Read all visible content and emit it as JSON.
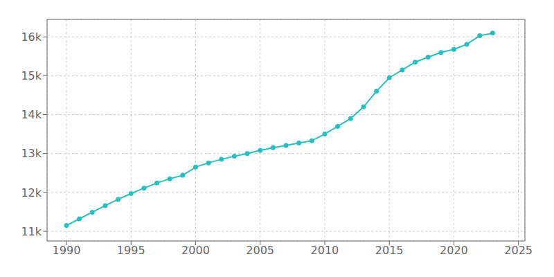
{
  "chart_data": {
    "type": "line",
    "x": [
      1990,
      1991,
      1992,
      1993,
      1994,
      1995,
      1996,
      1997,
      1998,
      1999,
      2000,
      2001,
      2002,
      2003,
      2004,
      2005,
      2006,
      2007,
      2008,
      2009,
      2010,
      2011,
      2012,
      2013,
      2014,
      2015,
      2016,
      2017,
      2018,
      2019,
      2020,
      2021,
      2022,
      2023
    ],
    "values": [
      11150,
      11320,
      11490,
      11660,
      11820,
      11970,
      12110,
      12240,
      12350,
      12440,
      12650,
      12760,
      12850,
      12930,
      13000,
      13080,
      13150,
      13210,
      13270,
      13330,
      13500,
      13700,
      13900,
      14200,
      14600,
      14950,
      15150,
      15350,
      15480,
      15600,
      15680,
      15810,
      16030,
      16100
    ],
    "color": "#29bfc0",
    "marker": "circle",
    "xlim": [
      1988.5,
      2025.5
    ],
    "ylim": [
      10750,
      16450
    ],
    "xticks": [
      1990,
      1995,
      2000,
      2005,
      2010,
      2015,
      2020,
      2025
    ],
    "yticks": [
      {
        "value": 11000,
        "label": "11k"
      },
      {
        "value": 12000,
        "label": "12k"
      },
      {
        "value": 13000,
        "label": "13k"
      },
      {
        "value": 14000,
        "label": "14k"
      },
      {
        "value": 15000,
        "label": "15k"
      },
      {
        "value": 16000,
        "label": "16k"
      }
    ],
    "grid": true
  }
}
